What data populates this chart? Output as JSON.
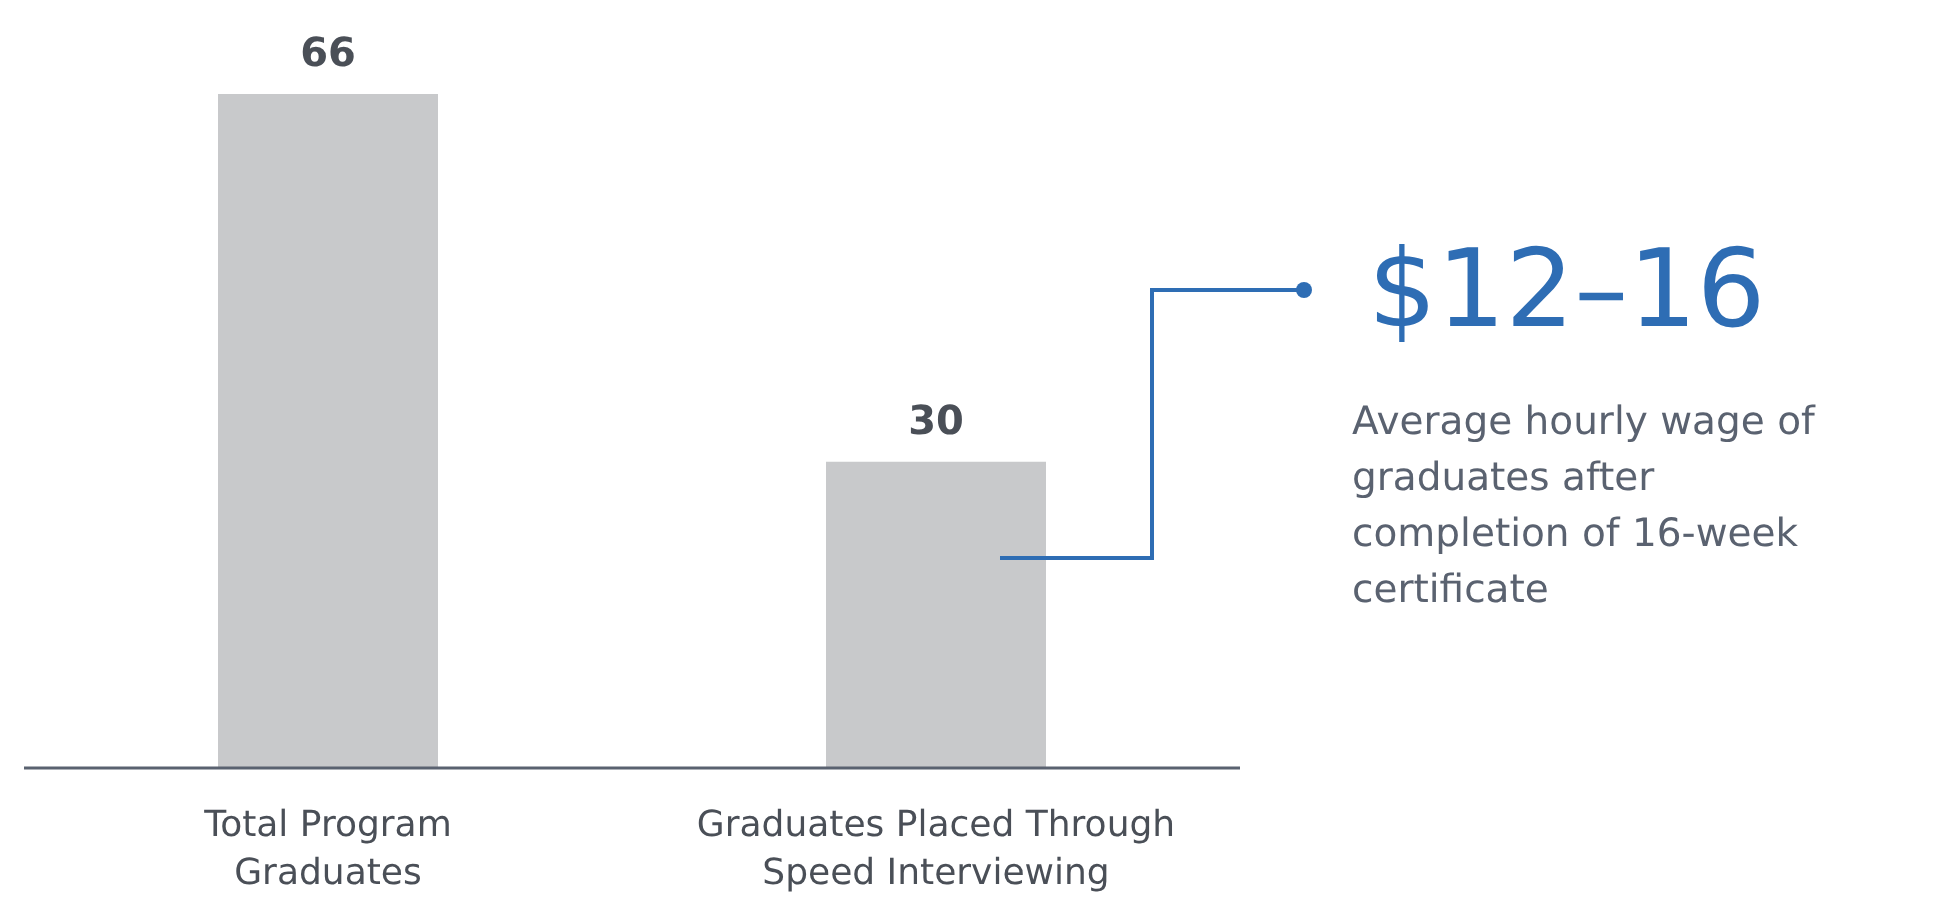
{
  "chart_data": {
    "type": "bar",
    "categories": [
      "Total Program Graduates",
      "Graduates Placed Through Speed Interviewing"
    ],
    "values": [
      66,
      30
    ],
    "data_labels": true,
    "color": "#c8c9cb",
    "annotations": [
      "$12–16",
      "Average hourly wage of graduates after completion of 16-week certificate"
    ]
  }
}
